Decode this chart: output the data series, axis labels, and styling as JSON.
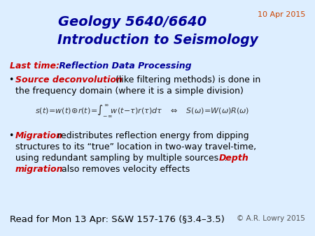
{
  "bg_color": "#ddeeff",
  "title_line1": "Geology 5640/6640",
  "title_line2": "Introduction to Seismology",
  "title_color": "#000099",
  "date_text": "10 Apr 2015",
  "date_color": "#cc4400",
  "last_time_label": "Last time:",
  "last_time_color": "#cc0000",
  "last_time_rest": " Reflection Data Processing",
  "last_time_rest_color": "#000099",
  "bullet1_bold": "Source deconvolution",
  "bullet1_bold_color": "#cc0000",
  "bullet2_bold": "Migration",
  "bullet2_bold_color": "#cc0000",
  "depth_bold": "Depth",
  "migration_bold": "migration",
  "depth_migration_color": "#cc0000",
  "body_color": "#000000",
  "read_text": "Read for Mon 13 Apr: S&W 157-176 (§3.4–3.5)",
  "read_color": "#000000",
  "copyright_text": "© A.R. Lowry 2015",
  "copyright_color": "#555555",
  "eq_color": "#333333"
}
